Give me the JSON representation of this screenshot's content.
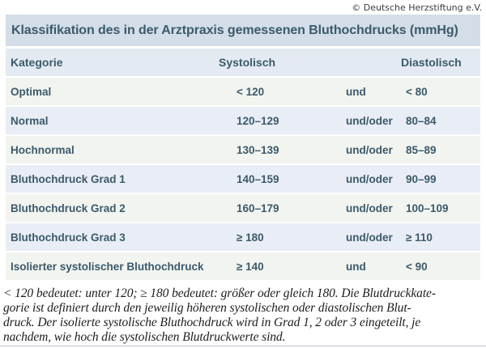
{
  "copyright": "© Deutsche Herzstiftung e.V.",
  "title": "Klassifikation des in der Arztpraxis gemessenen Bluthochdrucks (mmHg)",
  "table": {
    "headers": {
      "category": "Kategorie",
      "systolic": "Systolisch",
      "connector": "",
      "diastolic": "Diastolisch"
    },
    "rows": [
      {
        "category": "Optimal",
        "systolic": "< 120",
        "connector": "und",
        "diastolic": "< 80"
      },
      {
        "category": "Normal",
        "systolic": "120–129",
        "connector": "und/oder",
        "diastolic": "80–84"
      },
      {
        "category": "Hochnormal",
        "systolic": "130–139",
        "connector": "und/oder",
        "diastolic": "85–89"
      },
      {
        "category": "Bluthochdruck Grad 1",
        "systolic": "140–159",
        "connector": "und/oder",
        "diastolic": "90–99"
      },
      {
        "category": "Bluthochdruck Grad 2",
        "systolic": "160–179",
        "connector": "und/oder",
        "diastolic": "100–109"
      },
      {
        "category": "Bluthochdruck Grad 3",
        "systolic": "≥ 180",
        "connector": "und/oder",
        "diastolic": "≥ 110"
      },
      {
        "category": "Isolierter systolischer Bluthochdruck",
        "systolic": "≥ 140",
        "connector": "und",
        "diastolic": "< 90"
      }
    ]
  },
  "footer": {
    "lines": [
      "< 120 bedeutet: unter 120; ≥ 180 bedeutet: größer oder gleich 180. Die Blutdruckkate-",
      "gorie ist definiert durch den jeweilig höheren systolischen oder diastolischen Blut-",
      "druck. Der isolierte systolische Bluthochdruck wird in Grad 1, 2 oder 3 eingeteilt, je",
      "nachdem, wie hoch die systolischen Blutdruckwerte sind."
    ]
  },
  "colors": {
    "title_band": "#d3dee8",
    "header_row": "#e3eaf2",
    "row_offwhite": "#f1f4ef",
    "row_blue": "#e9edf5",
    "table_text": "#3c5a6b",
    "footer_text": "#1c1c1c"
  }
}
